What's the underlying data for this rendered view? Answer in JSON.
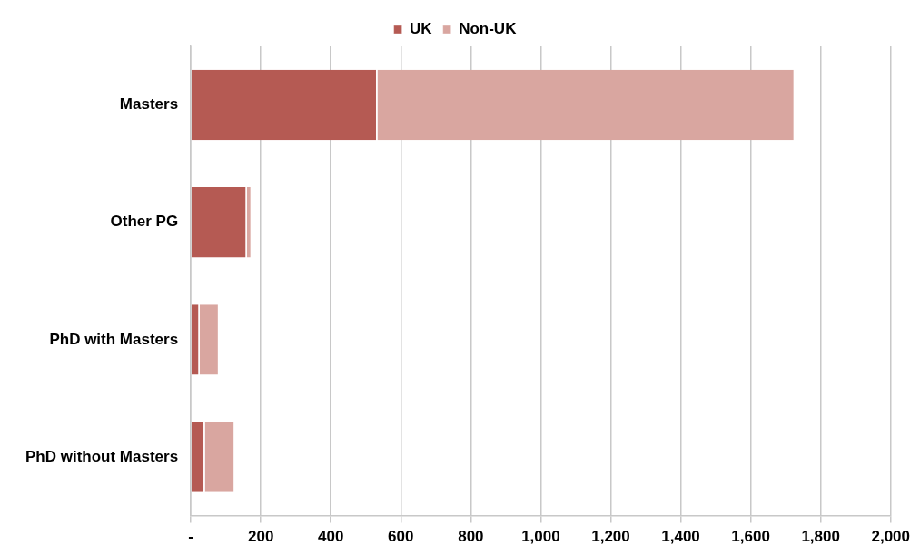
{
  "chart_data": {
    "type": "bar",
    "orientation": "horizontal",
    "stacked": true,
    "categories": [
      "Masters",
      "Other PG",
      "PhD with Masters",
      "PhD without Masters"
    ],
    "series": [
      {
        "name": "UK",
        "color": "#b55a53",
        "values": [
          533,
          160,
          25,
          40
        ]
      },
      {
        "name": "Non-UK",
        "color": "#d9a6a0",
        "values": [
          1193,
          14,
          56,
          86
        ]
      }
    ],
    "xlim": [
      0,
      2000
    ],
    "xticks": [
      {
        "value": 0,
        "label": "-"
      },
      200,
      400,
      600,
      800,
      {
        "value": 1000,
        "label": "1,000"
      },
      {
        "value": 1200,
        "label": "1,200"
      },
      {
        "value": 1400,
        "label": "1,400"
      },
      {
        "value": 1600,
        "label": "1,600"
      },
      {
        "value": 1800,
        "label": "1,800"
      },
      {
        "value": 2000,
        "label": "2,000"
      }
    ],
    "grid": "x",
    "legend": "top"
  }
}
